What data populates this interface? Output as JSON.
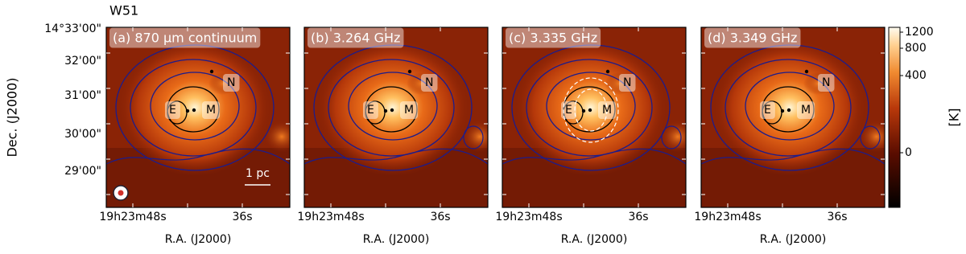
{
  "title": "W51",
  "ylabel": "Dec. (J2000)",
  "xlabel": "R.A. (J2000)",
  "yticks": [
    "14°33'00\"",
    "32'00\"",
    "31'00\"",
    "30'00\"",
    "29'00\""
  ],
  "xticks": [
    "19h23m48s",
    "36s"
  ],
  "panels": [
    {
      "label": "(a) 870 µm continuum",
      "sources": [
        "N",
        "E",
        "M"
      ],
      "scalebar": "1 pc"
    },
    {
      "label": "(b) 3.264 GHz",
      "sources": [
        "N",
        "E",
        "M"
      ]
    },
    {
      "label": "(c) 3.335 GHz",
      "sources": [
        "N",
        "E",
        "M"
      ]
    },
    {
      "label": "(d) 3.349 GHz",
      "sources": [
        "N",
        "E",
        "M"
      ]
    }
  ],
  "colorbar": {
    "label": "[K]",
    "ticks": [
      "1200",
      "800",
      "400",
      "0"
    ]
  }
}
